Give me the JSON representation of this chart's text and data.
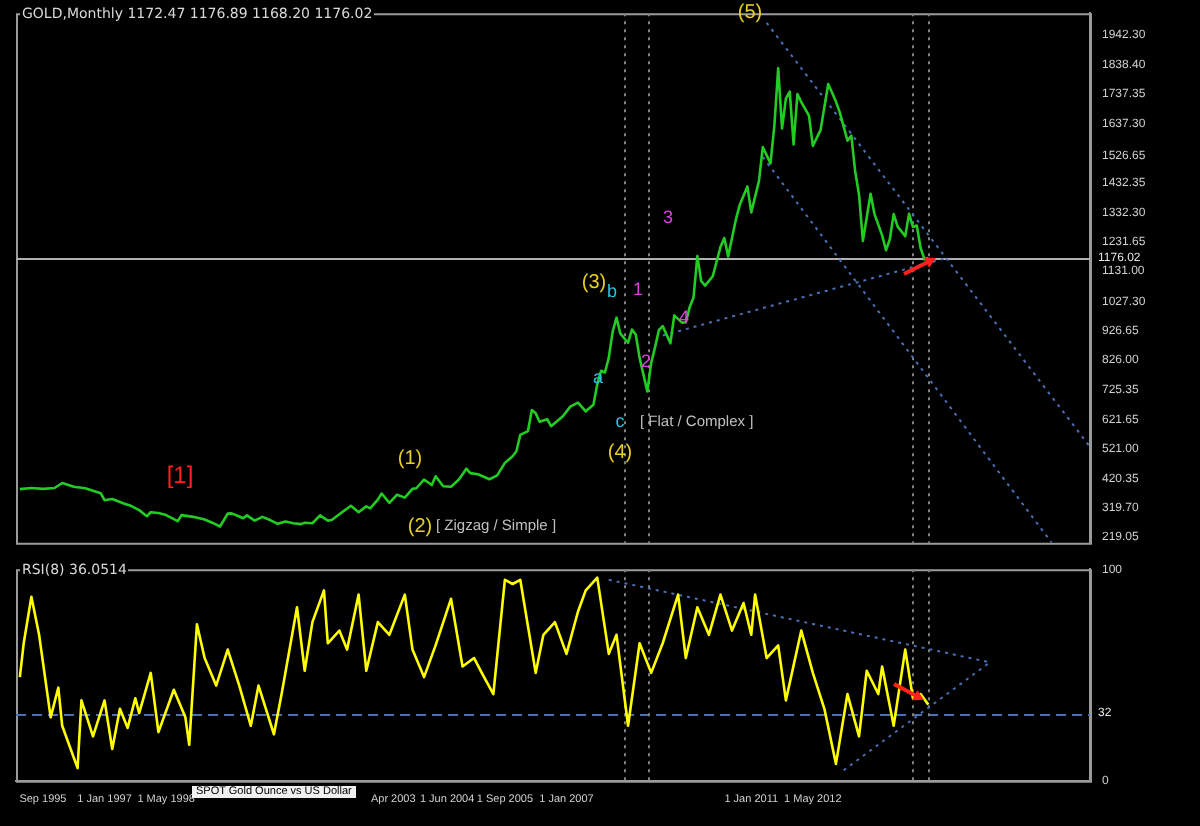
{
  "chart_data": [
    {
      "type": "line",
      "title": "GOLD,Monthly  1172.47 1176.89 1168.20 1176.02",
      "xlim": [
        "1995-02",
        "2018-05"
      ],
      "ylim": [
        199,
        2015
      ],
      "tick_labels": "y",
      "grid": false,
      "yticks": [
        {
          "value": 219.05,
          "label": "219.05"
        },
        {
          "value": 319.7,
          "label": "319.70"
        },
        {
          "value": 420.35,
          "label": "420.35"
        },
        {
          "value": 521,
          "label": "521.00"
        },
        {
          "value": 621.65,
          "label": "621.65"
        },
        {
          "value": 725.35,
          "label": "725.35"
        },
        {
          "value": 826,
          "label": "826.00"
        },
        {
          "value": 926.65,
          "label": "926.65"
        },
        {
          "value": 1027.3,
          "label": "1027.30"
        },
        {
          "value": 1131,
          "label": "1131.00"
        },
        {
          "value": 1231.65,
          "label": "1231.65"
        },
        {
          "value": 1332.3,
          "label": "1332.30"
        },
        {
          "value": 1432.35,
          "label": "1432.35"
        },
        {
          "value": 1526.65,
          "label": "1526.65"
        },
        {
          "value": 1637.3,
          "label": "1637.30"
        },
        {
          "value": 1737.35,
          "label": "1737.35"
        },
        {
          "value": 1838.4,
          "label": "1838.40"
        },
        {
          "value": 1942.3,
          "label": "1942.30"
        }
      ],
      "series": [
        {
          "color": "#22cc22",
          "x": [
            "1995-03",
            "1995-06",
            "1995-09",
            "1995-12",
            "1996-02",
            "1996-05",
            "1996-08",
            "1996-12",
            "1997-01",
            "1997-03",
            "1997-06",
            "1997-08",
            "1997-10",
            "1997-12",
            "1998-01",
            "1998-03",
            "1998-05",
            "1998-08",
            "1998-09",
            "1998-12",
            "1999-03",
            "1999-05",
            "1999-07",
            "1999-09",
            "1999-10",
            "1999-12",
            "2000-01",
            "2000-02",
            "2000-04",
            "2000-06",
            "2000-08",
            "2000-10",
            "2000-12",
            "2001-02",
            "2001-04",
            "2001-05",
            "2001-07",
            "2001-09",
            "2001-11",
            "2001-12",
            "2002-02",
            "2002-05",
            "2002-07",
            "2002-09",
            "2002-10",
            "2002-12",
            "2003-01",
            "2003-03",
            "2003-05",
            "2003-07",
            "2003-09",
            "2003-10",
            "2003-12",
            "2004-02",
            "2004-03",
            "2004-05",
            "2004-07",
            "2004-09",
            "2004-11",
            "2004-12",
            "2005-02",
            "2005-05",
            "2005-07",
            "2005-09",
            "2005-11",
            "2005-12",
            "2006-01",
            "2006-03",
            "2006-04",
            "2006-05",
            "2006-06",
            "2006-08",
            "2006-09",
            "2006-12",
            "2007-02",
            "2007-04",
            "2007-06",
            "2007-08",
            "2007-09",
            "2007-10",
            "2007-11",
            "2007-12",
            "2008-01",
            "2008-02",
            "2008-03",
            "2008-05",
            "2008-06",
            "2008-07",
            "2008-08",
            "2008-10",
            "2008-11",
            "2008-12",
            "2009-01",
            "2009-02",
            "2009-04",
            "2009-05",
            "2009-07",
            "2009-08",
            "2009-09",
            "2009-10",
            "2009-11",
            "2009-12",
            "2010-01",
            "2010-03",
            "2010-05",
            "2010-06",
            "2010-07",
            "2010-09",
            "2010-10",
            "2010-12",
            "2011-01",
            "2011-03",
            "2011-04",
            "2011-06",
            "2011-07",
            "2011-08",
            "2011-09",
            "2011-10",
            "2011-11",
            "2011-12",
            "2012-01",
            "2012-02",
            "2012-04",
            "2012-05",
            "2012-07",
            "2012-09",
            "2012-11",
            "2012-12",
            "2013-02",
            "2013-03",
            "2013-04",
            "2013-05",
            "2013-06",
            "2013-08",
            "2013-09",
            "2013-11",
            "2013-12",
            "2014-01",
            "2014-02",
            "2014-03",
            "2014-05",
            "2014-06",
            "2014-07",
            "2014-08",
            "2014-09",
            "2014-10",
            "2014-11"
          ],
          "values": [
            383,
            387,
            384,
            387,
            404,
            391,
            386,
            369,
            345,
            349,
            334,
            325,
            311,
            290,
            304,
            301,
            294,
            273,
            294,
            288,
            279,
            268,
            255,
            299,
            300,
            289,
            283,
            293,
            275,
            288,
            277,
            264,
            272,
            266,
            263,
            268,
            266,
            293,
            275,
            277,
            297,
            326,
            304,
            324,
            317,
            347,
            368,
            336,
            364,
            354,
            384,
            386,
            416,
            397,
            427,
            393,
            391,
            415,
            453,
            438,
            434,
            417,
            430,
            473,
            496,
            513,
            569,
            582,
            654,
            643,
            614,
            623,
            599,
            632,
            666,
            680,
            650,
            672,
            743,
            789,
            783,
            834,
            923,
            971,
            916,
            885,
            930,
            913,
            833,
            718,
            815,
            869,
            928,
            942,
            883,
            979,
            954,
            955,
            1007,
            1040,
            1182,
            1096,
            1081,
            1113,
            1213,
            1244,
            1181,
            1307,
            1357,
            1421,
            1332,
            1439,
            1556,
            1500,
            1628,
            1826,
            1620,
            1722,
            1746,
            1565,
            1738,
            1710,
            1664,
            1560,
            1614,
            1772,
            1712,
            1675,
            1578,
            1595,
            1472,
            1393,
            1234,
            1396,
            1327,
            1253,
            1202,
            1240,
            1326,
            1284,
            1250,
            1327,
            1282,
            1287,
            1210,
            1171,
            1176
          ]
        },
        {
          "color": "#4a6fb5",
          "line_style": "dotted",
          "x": [
            "2011-05",
            "2018-05"
          ],
          "values": [
            1982,
            528
          ]
        },
        {
          "color": "#4a6fb5",
          "line_style": "dotted",
          "x": [
            "2011-04",
            "2017-07"
          ],
          "values": [
            1522,
            200
          ]
        },
        {
          "color": "#4a6fb5",
          "line_style": "dotted",
          "x": [
            "2009-02",
            "2015-03"
          ],
          "values": [
            910,
            1173
          ]
        }
      ],
      "ref_lines": [
        {
          "axis": "y",
          "value": 1176.02,
          "label": "1176.02",
          "color": "#b0b0b0",
          "line_style": "solid"
        },
        {
          "axis": "x",
          "value": "2008-04",
          "color": "#808080",
          "line_style": "dotted"
        },
        {
          "axis": "x",
          "value": "2008-10",
          "color": "#808080",
          "line_style": "dotted"
        },
        {
          "axis": "x",
          "value": "2014-07",
          "color": "#808080",
          "line_style": "dotted"
        },
        {
          "axis": "x",
          "value": "2014-11",
          "color": "#808080",
          "line_style": "dotted"
        }
      ],
      "annotations": [
        "[1]",
        "(1)",
        "(2)",
        "[ Zigzag / Simple ]",
        "(3)",
        "a",
        "b",
        "c",
        "(4)",
        "[ Flat / Complex ]",
        "1",
        "2",
        "3",
        "4",
        "(5)"
      ]
    },
    {
      "type": "line",
      "title": "RSI(8) 36.0514",
      "xlim": [
        "1995-02",
        "2018-05"
      ],
      "ylim": [
        0,
        100
      ],
      "yticks": [
        0,
        100
      ],
      "grid": false,
      "xticks": [
        {
          "value": "1995-09",
          "label": "Sep 1995"
        },
        {
          "value": "1997-01",
          "label": "1 Jan 1997"
        },
        {
          "value": "1998-05",
          "label": "1 May 1998"
        },
        {
          "value": "2003-04",
          "label": "Apr 2003"
        },
        {
          "value": "2004-06",
          "label": "1 Jun 2004"
        },
        {
          "value": "2005-09",
          "label": "1 Sep 2005"
        },
        {
          "value": "2007-01",
          "label": "1 Jan 2007"
        },
        {
          "value": "2011-01",
          "label": "1 Jan 2011"
        },
        {
          "value": "2012-05",
          "label": "1 May 2012"
        }
      ],
      "series": [
        {
          "color": "#ffff00",
          "x": [
            "1995-03",
            "1995-04",
            "1995-06",
            "1995-08",
            "1995-11",
            "1996-01",
            "1996-02",
            "1996-06",
            "1996-07",
            "1996-10",
            "1997-01",
            "1997-03",
            "1997-05",
            "1997-07",
            "1997-09",
            "1997-10",
            "1998-01",
            "1998-03",
            "1998-07",
            "1998-10",
            "1998-11",
            "1999-01",
            "1999-03",
            "1999-06",
            "1999-09",
            "1999-12",
            "2000-03",
            "2000-05",
            "2000-09",
            "2000-11",
            "2001-03",
            "2001-05",
            "2001-07",
            "2001-10",
            "2001-11",
            "2002-02",
            "2002-04",
            "2002-07",
            "2002-09",
            "2002-12",
            "2003-03",
            "2003-07",
            "2003-09",
            "2003-12",
            "2004-03",
            "2004-07",
            "2004-10",
            "2005-01",
            "2005-03",
            "2005-06",
            "2005-09",
            "2005-11",
            "2006-01",
            "2006-03",
            "2006-05",
            "2006-07",
            "2006-10",
            "2007-01",
            "2007-04",
            "2007-06",
            "2007-09",
            "2007-12",
            "2008-02",
            "2008-05",
            "2008-08",
            "2008-11",
            "2009-02",
            "2009-06",
            "2009-08",
            "2009-11",
            "2010-02",
            "2010-05",
            "2010-08",
            "2010-11",
            "2011-01",
            "2011-02",
            "2011-05",
            "2011-08",
            "2011-10",
            "2012-02",
            "2012-05",
            "2012-08",
            "2012-11",
            "2013-02",
            "2013-05",
            "2013-07",
            "2013-10",
            "2013-11",
            "2014-02",
            "2014-05",
            "2014-07",
            "2014-09",
            "2014-11"
          ],
          "values": [
            49,
            65,
            87,
            69,
            30,
            44,
            26,
            6,
            38,
            21,
            38,
            15,
            34,
            25,
            39,
            32,
            51,
            23,
            43,
            30,
            17,
            74,
            58,
            45,
            62,
            45,
            26,
            45,
            22,
            41,
            82,
            52,
            75,
            90,
            65,
            71,
            62,
            88,
            52,
            75,
            69,
            88,
            62,
            49,
            64,
            86,
            54,
            58,
            51,
            41,
            95,
            93,
            95,
            73,
            51,
            69,
            75,
            60,
            80,
            90,
            96,
            60,
            69,
            26,
            65,
            51,
            65,
            88,
            58,
            82,
            69,
            88,
            71,
            84,
            69,
            88,
            58,
            64,
            38,
            71,
            51,
            34,
            8,
            41,
            21,
            52,
            41,
            54,
            26,
            62,
            39,
            41,
            36
          ]
        },
        {
          "color": "#4a6fb5",
          "line_style": "dotted",
          "x": [
            "2007-12",
            "2016-03"
          ],
          "values": [
            95,
            56
          ]
        },
        {
          "color": "#4a6fb5",
          "line_style": "dotted",
          "x": [
            "2013-01",
            "2016-03"
          ],
          "values": [
            5,
            56
          ]
        }
      ],
      "ref_lines": [
        {
          "axis": "y",
          "value": 32,
          "label": "32",
          "color": "#4a6fb5",
          "line_style": "dashed"
        },
        {
          "axis": "x",
          "value": "2008-04",
          "color": "#808080",
          "line_style": "dotted"
        },
        {
          "axis": "x",
          "value": "2008-10",
          "color": "#808080",
          "line_style": "dotted"
        },
        {
          "axis": "x",
          "value": "2014-07",
          "color": "#808080",
          "line_style": "dotted"
        },
        {
          "axis": "x",
          "value": "2014-11",
          "color": "#808080",
          "line_style": "dotted"
        }
      ],
      "annotations": [
        "SPOT Gold Ounce vs US Dollar"
      ]
    }
  ]
}
